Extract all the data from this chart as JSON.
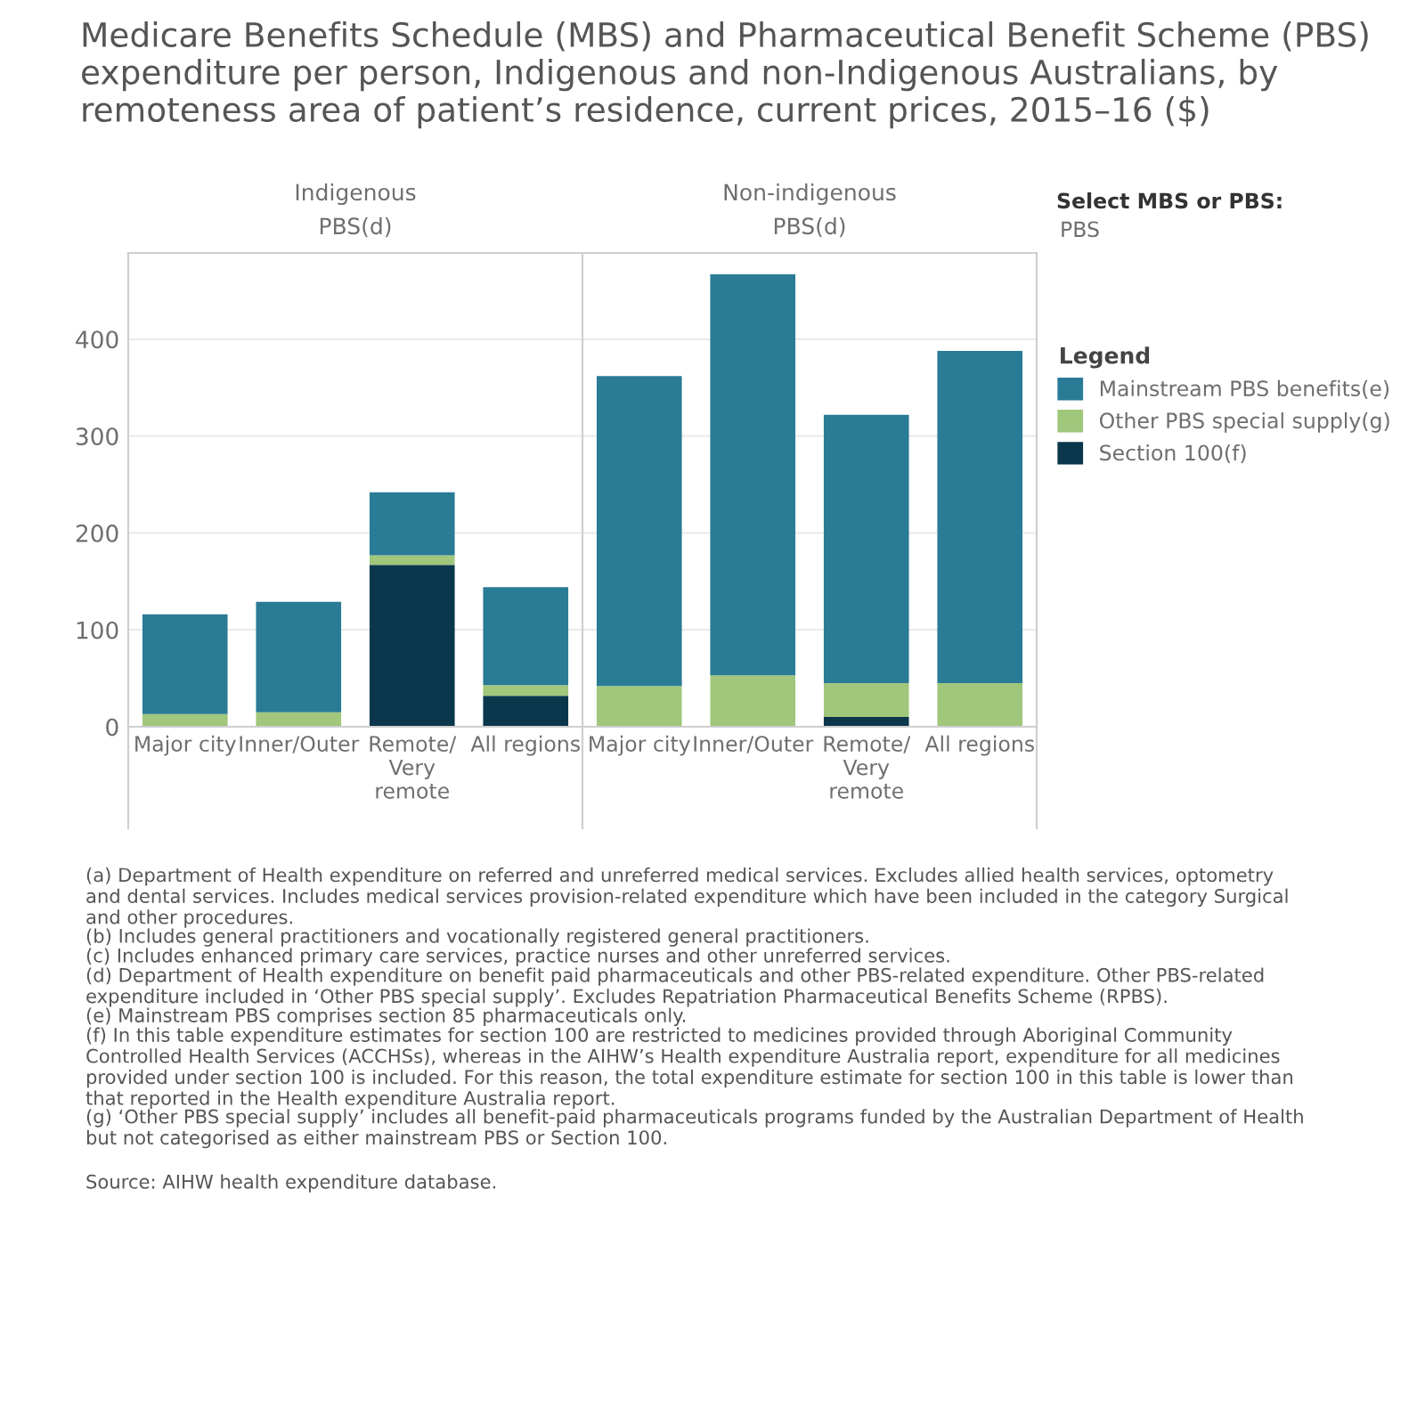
{
  "chart_data": [
    {
      "type": "bar",
      "stacked": true,
      "title": "Indigenous",
      "subtitle": "PBS(d)",
      "categories": [
        "Major city",
        "Inner/Outer",
        "Remote/\nVery\nremote",
        "All regions"
      ],
      "series": [
        {
          "color": "#0b374d",
          "values": [
            0,
            0,
            167,
            32
          ]
        },
        {
          "color": "#a0c77c",
          "values": [
            13,
            15,
            10,
            11
          ]
        },
        {
          "color": "#2a7b96",
          "values": [
            103,
            114,
            65,
            101
          ]
        }
      ],
      "ylim": [
        0,
        489
      ],
      "yticks": [
        0,
        100,
        200,
        300,
        400
      ],
      "grid": "y",
      "legend": false,
      "annotations": [
        "Medicare Benefits Schedule (MBS) and Pharmaceutical Benefit Scheme (PBS) expenditure per person, Indigenous and non-Indigenous Australians, by remoteness area of patient’s residence, current prices, 2015–16 ($)",
        "Select MBS or PBS:",
        "PBS",
        "(a) Department of Health expenditure on referred and unreferred medical services. Excludes allied health services, optometry and dental services. Includes medical services provision-related expenditure which have been included in the category Surgical and other procedures.",
        "(b) Includes general practitioners and vocationally registered general practitioners.",
        "(c) Includes enhanced primary care services, practice nurses and other unreferred services.",
        "(d) Department of Health expenditure on benefit paid pharmaceuticals and other PBS-related expenditure. Other PBS-related expenditure included in ‘Other PBS special supply’. Excludes Repatriation Pharmaceutical Benefits Scheme (RPBS).",
        "(e) Mainstream PBS comprises section 85 pharmaceuticals only.",
        "(f) In this table expenditure estimates for section 100 are restricted to medicines provided through Aboriginal Community Controlled Health Services (ACCHSs), whereas in the AIHW’s Health expenditure Australia report, expenditure for all medicines provided under section 100 is included. For this reason, the total expenditure estimate for section 100 in this table is lower than that reported in the Health expenditure Australia report.",
        "(g) ‘Other PBS special supply’ includes all benefit-paid pharmaceuticals programs funded by the Australian Department of Health but not categorised as either mainstream PBS or Section 100.",
        "Source: AIHW health expenditure database."
      ]
    },
    {
      "type": "bar",
      "stacked": true,
      "title": "Non-indigenous",
      "subtitle": "PBS(d)",
      "categories": [
        "Major city",
        "Inner/Outer",
        "Remote/\nVery\nremote",
        "All regions"
      ],
      "series": [
        {
          "name": "Section 100(f)",
          "color": "#0b374d",
          "values": [
            0,
            0,
            10,
            0
          ]
        },
        {
          "name": "Other PBS special supply(g)",
          "color": "#a0c77c",
          "values": [
            42,
            53,
            35,
            45
          ]
        },
        {
          "name": "Mainstream PBS benefits(e)",
          "color": "#2a7b96",
          "values": [
            320,
            414,
            277,
            343
          ]
        }
      ],
      "ylim": [
        0,
        489
      ],
      "yticks": [
        0,
        100,
        200,
        300,
        400
      ],
      "grid": "y",
      "tick_labels": "x",
      "legend": "right",
      "legend_title": "Legend"
    }
  ]
}
